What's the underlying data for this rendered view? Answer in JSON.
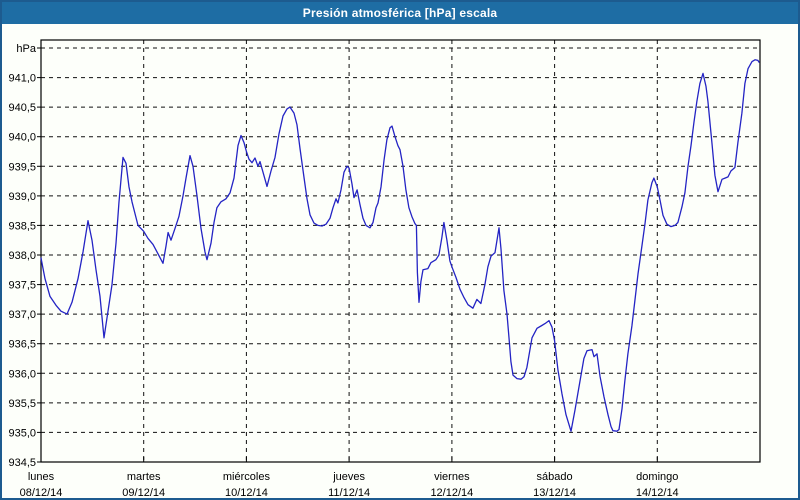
{
  "window": {
    "title": "Presión atmosférica [hPa] escala"
  },
  "chart_data": {
    "type": "line",
    "title": "Presión atmosférica [hPa] escala",
    "ylabel": "hPa",
    "xlabel": "",
    "ylim": [
      934.5,
      941.5
    ],
    "ytick_step": 0.5,
    "grid": "dashed",
    "legend": "none",
    "yticks": [
      {
        "value": 941.0,
        "label": "941,0"
      },
      {
        "value": 940.5,
        "label": "940,5"
      },
      {
        "value": 940.0,
        "label": "940,0"
      },
      {
        "value": 939.5,
        "label": "939,5"
      },
      {
        "value": 939.0,
        "label": "939,0"
      },
      {
        "value": 938.5,
        "label": "938,5"
      },
      {
        "value": 938.0,
        "label": "938,0"
      },
      {
        "value": 937.5,
        "label": "937,5"
      },
      {
        "value": 937.0,
        "label": "937,0"
      },
      {
        "value": 936.5,
        "label": "936,5"
      },
      {
        "value": 936.0,
        "label": "936,0"
      },
      {
        "value": 935.5,
        "label": "935,5"
      },
      {
        "value": 935.0,
        "label": "935,0"
      },
      {
        "value": 934.5,
        "label": "934,5"
      }
    ],
    "x_axis": {
      "unit": "days since Monday 00:00",
      "range_days": [
        0,
        7
      ],
      "days": [
        {
          "name": "lunes",
          "date": "08/12/14"
        },
        {
          "name": "martes",
          "date": "09/12/14"
        },
        {
          "name": "miércoles",
          "date": "10/12/14"
        },
        {
          "name": "jueves",
          "date": "11/12/14"
        },
        {
          "name": "viernes",
          "date": "12/12/14"
        },
        {
          "name": "sábado",
          "date": "13/12/14"
        },
        {
          "name": "domingo",
          "date": "14/12/14"
        }
      ]
    },
    "colors": {
      "line": "#2424c4",
      "grid": "#111111",
      "background": "#fdfffa",
      "titlebar": "#1e6da4",
      "title_text": "#ffffff",
      "border": "#1d5b8f"
    },
    "series": [
      {
        "name": "Presión atmosférica",
        "unit": "hPa",
        "color": "#2424c4",
        "points": [
          [
            0,
            937.95
          ],
          [
            0.039,
            937.6
          ],
          [
            0.088,
            937.3
          ],
          [
            0.146,
            937.15
          ],
          [
            0.195,
            937.05
          ],
          [
            0.253,
            937.0
          ],
          [
            0.302,
            937.2
          ],
          [
            0.36,
            937.6
          ],
          [
            0.409,
            938.05
          ],
          [
            0.458,
            938.58
          ],
          [
            0.497,
            938.25
          ],
          [
            0.535,
            937.75
          ],
          [
            0.574,
            937.3
          ],
          [
            0.613,
            936.6
          ],
          [
            0.652,
            937.05
          ],
          [
            0.691,
            937.5
          ],
          [
            0.73,
            938.2
          ],
          [
            0.759,
            938.9
          ],
          [
            0.798,
            939.65
          ],
          [
            0.828,
            939.55
          ],
          [
            0.857,
            939.15
          ],
          [
            0.886,
            938.9
          ],
          [
            0.915,
            938.7
          ],
          [
            0.944,
            938.5
          ],
          [
            1,
            938.4
          ],
          [
            1.042,
            938.28
          ],
          [
            1.09,
            938.18
          ],
          [
            1.139,
            938.02
          ],
          [
            1.188,
            937.86
          ],
          [
            1.217,
            938.15
          ],
          [
            1.237,
            938.38
          ],
          [
            1.266,
            938.25
          ],
          [
            1.305,
            938.45
          ],
          [
            1.343,
            938.65
          ],
          [
            1.382,
            939.0
          ],
          [
            1.412,
            939.3
          ],
          [
            1.451,
            939.68
          ],
          [
            1.48,
            939.5
          ],
          [
            1.519,
            939.0
          ],
          [
            1.558,
            938.45
          ],
          [
            1.597,
            938.05
          ],
          [
            1.616,
            937.92
          ],
          [
            1.655,
            938.2
          ],
          [
            1.684,
            938.55
          ],
          [
            1.713,
            938.8
          ],
          [
            1.752,
            938.9
          ],
          [
            1.801,
            938.95
          ],
          [
            1.84,
            939.05
          ],
          [
            1.879,
            939.3
          ],
          [
            1.918,
            939.85
          ],
          [
            1.947,
            940.02
          ],
          [
            1.976,
            939.9
          ],
          [
            2,
            939.75
          ],
          [
            2.025,
            939.62
          ],
          [
            2.054,
            939.56
          ],
          [
            2.083,
            939.64
          ],
          [
            2.113,
            939.5
          ],
          [
            2.132,
            939.58
          ],
          [
            2.161,
            939.4
          ],
          [
            2.2,
            939.16
          ],
          [
            2.239,
            939.42
          ],
          [
            2.278,
            939.65
          ],
          [
            2.317,
            940.05
          ],
          [
            2.356,
            940.35
          ],
          [
            2.395,
            940.47
          ],
          [
            2.424,
            940.5
          ],
          [
            2.463,
            940.4
          ],
          [
            2.492,
            940.2
          ],
          [
            2.522,
            939.8
          ],
          [
            2.561,
            939.3
          ],
          [
            2.59,
            938.95
          ],
          [
            2.619,
            938.68
          ],
          [
            2.658,
            938.54
          ],
          [
            2.697,
            938.5
          ],
          [
            2.736,
            938.49
          ],
          [
            2.775,
            938.52
          ],
          [
            2.814,
            938.62
          ],
          [
            2.843,
            938.8
          ],
          [
            2.872,
            938.95
          ],
          [
            2.891,
            938.88
          ],
          [
            2.921,
            939.1
          ],
          [
            2.95,
            939.4
          ],
          [
            2.979,
            939.5
          ],
          [
            3,
            939.47
          ],
          [
            3.028,
            939.2
          ],
          [
            3.047,
            938.97
          ],
          [
            3.077,
            939.1
          ],
          [
            3.106,
            938.85
          ],
          [
            3.135,
            938.62
          ],
          [
            3.164,
            938.5
          ],
          [
            3.203,
            938.46
          ],
          [
            3.232,
            938.55
          ],
          [
            3.261,
            938.8
          ],
          [
            3.281,
            938.88
          ],
          [
            3.31,
            939.15
          ],
          [
            3.339,
            939.6
          ],
          [
            3.368,
            939.95
          ],
          [
            3.398,
            940.15
          ],
          [
            3.417,
            940.18
          ],
          [
            3.446,
            940.0
          ],
          [
            3.475,
            939.85
          ],
          [
            3.495,
            939.78
          ],
          [
            3.524,
            939.5
          ],
          [
            3.553,
            939.1
          ],
          [
            3.582,
            938.8
          ],
          [
            3.611,
            938.65
          ],
          [
            3.641,
            938.53
          ],
          [
            3.655,
            938.5
          ],
          [
            3.665,
            937.7
          ],
          [
            3.68,
            937.2
          ],
          [
            3.699,
            937.55
          ],
          [
            3.719,
            937.75
          ],
          [
            3.767,
            937.77
          ],
          [
            3.796,
            937.87
          ],
          [
            3.845,
            937.92
          ],
          [
            3.874,
            938.0
          ],
          [
            3.903,
            938.3
          ],
          [
            3.923,
            938.55
          ],
          [
            3.952,
            938.25
          ],
          [
            3.981,
            937.9
          ],
          [
            4,
            937.8
          ],
          [
            4.04,
            937.62
          ],
          [
            4.079,
            937.42
          ],
          [
            4.118,
            937.28
          ],
          [
            4.157,
            937.16
          ],
          [
            4.205,
            937.1
          ],
          [
            4.244,
            937.25
          ],
          [
            4.283,
            937.18
          ],
          [
            4.322,
            937.5
          ],
          [
            4.351,
            937.8
          ],
          [
            4.381,
            937.98
          ],
          [
            4.42,
            938.04
          ],
          [
            4.459,
            938.46
          ],
          [
            4.478,
            938.1
          ],
          [
            4.507,
            937.4
          ],
          [
            4.537,
            937.0
          ],
          [
            4.556,
            936.6
          ],
          [
            4.575,
            936.2
          ],
          [
            4.595,
            935.97
          ],
          [
            4.634,
            935.91
          ],
          [
            4.673,
            935.9
          ],
          [
            4.702,
            935.94
          ],
          [
            4.731,
            936.1
          ],
          [
            4.78,
            936.6
          ],
          [
            4.829,
            936.76
          ],
          [
            4.868,
            936.8
          ],
          [
            4.907,
            936.84
          ],
          [
            4.946,
            936.89
          ],
          [
            4.975,
            936.78
          ],
          [
            5,
            936.55
          ],
          [
            5.033,
            936.05
          ],
          [
            5.072,
            935.65
          ],
          [
            5.111,
            935.3
          ],
          [
            5.16,
            935.02
          ],
          [
            5.199,
            935.38
          ],
          [
            5.247,
            935.86
          ],
          [
            5.286,
            936.25
          ],
          [
            5.316,
            936.38
          ],
          [
            5.364,
            936.4
          ],
          [
            5.384,
            936.28
          ],
          [
            5.413,
            936.33
          ],
          [
            5.442,
            935.95
          ],
          [
            5.481,
            935.6
          ],
          [
            5.52,
            935.3
          ],
          [
            5.549,
            935.1
          ],
          [
            5.568,
            935.03
          ],
          [
            5.607,
            935.02
          ],
          [
            5.627,
            935.05
          ],
          [
            5.656,
            935.4
          ],
          [
            5.685,
            935.88
          ],
          [
            5.714,
            936.33
          ],
          [
            5.753,
            936.8
          ],
          [
            5.782,
            937.23
          ],
          [
            5.812,
            937.68
          ],
          [
            5.85,
            938.15
          ],
          [
            5.88,
            938.53
          ],
          [
            5.909,
            938.93
          ],
          [
            5.948,
            939.22
          ],
          [
            5.967,
            939.3
          ],
          [
            6,
            939.15
          ],
          [
            6.026,
            938.93
          ],
          [
            6.056,
            938.67
          ],
          [
            6.094,
            938.52
          ],
          [
            6.133,
            938.48
          ],
          [
            6.172,
            938.5
          ],
          [
            6.201,
            938.55
          ],
          [
            6.24,
            938.81
          ],
          [
            6.269,
            939.05
          ],
          [
            6.299,
            939.5
          ],
          [
            6.328,
            939.85
          ],
          [
            6.357,
            940.25
          ],
          [
            6.386,
            940.6
          ],
          [
            6.415,
            940.9
          ],
          [
            6.445,
            941.07
          ],
          [
            6.474,
            940.85
          ],
          [
            6.493,
            940.6
          ],
          [
            6.532,
            939.9
          ],
          [
            6.561,
            939.35
          ],
          [
            6.591,
            939.07
          ],
          [
            6.63,
            939.28
          ],
          [
            6.659,
            939.3
          ],
          [
            6.688,
            939.32
          ],
          [
            6.717,
            939.42
          ],
          [
            6.756,
            939.48
          ],
          [
            6.785,
            939.9
          ],
          [
            6.824,
            940.4
          ],
          [
            6.853,
            940.9
          ],
          [
            6.883,
            941.15
          ],
          [
            6.922,
            941.27
          ],
          [
            6.951,
            941.3
          ],
          [
            6.98,
            941.29
          ],
          [
            6.99,
            941.26
          ]
        ]
      }
    ]
  }
}
